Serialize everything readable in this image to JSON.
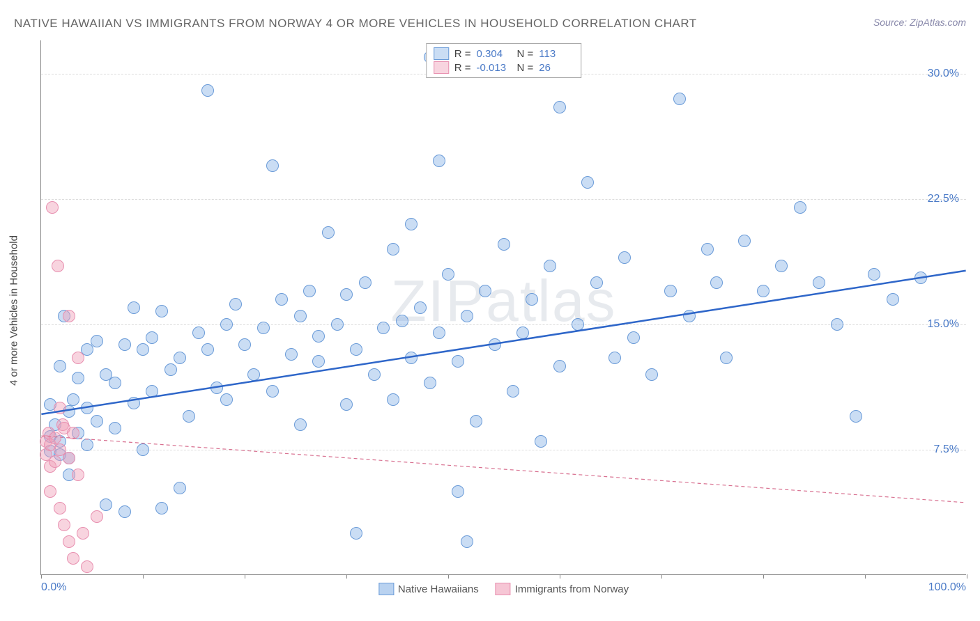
{
  "title": "NATIVE HAWAIIAN VS IMMIGRANTS FROM NORWAY 4 OR MORE VEHICLES IN HOUSEHOLD CORRELATION CHART",
  "source": "Source: ZipAtlas.com",
  "watermark": "ZIPatlas",
  "y_axis_title": "4 or more Vehicles in Household",
  "chart": {
    "type": "scatter",
    "xlim": [
      0,
      100
    ],
    "ylim": [
      0,
      32
    ],
    "x_ticks_label_left": "0.0%",
    "x_ticks_label_right": "100.0%",
    "y_ticks": [
      {
        "value": 7.5,
        "label": "7.5%"
      },
      {
        "value": 15.0,
        "label": "15.0%"
      },
      {
        "value": 22.5,
        "label": "22.5%"
      },
      {
        "value": 30.0,
        "label": "30.0%"
      }
    ],
    "x_tick_positions": [
      0,
      11,
      22,
      33,
      44,
      56,
      67,
      78,
      89,
      100
    ],
    "background_color": "#ffffff",
    "grid_color": "#dddddd",
    "point_radius": 9,
    "series": [
      {
        "name": "Native Hawaiians",
        "fill": "rgba(138, 180, 230, 0.45)",
        "stroke": "#6a9bd8",
        "trend_color": "#2e66c9",
        "trend_width": 2.5,
        "trend_dash": "none",
        "R": "0.304",
        "N": "113",
        "trend": {
          "x1": 0,
          "y1": 9.6,
          "x2": 100,
          "y2": 18.2
        },
        "points": [
          [
            1,
            10.2
          ],
          [
            1,
            8.3
          ],
          [
            1,
            7.4
          ],
          [
            1.5,
            9.0
          ],
          [
            2,
            12.5
          ],
          [
            2,
            8.0
          ],
          [
            2,
            7.2
          ],
          [
            2.5,
            15.5
          ],
          [
            3,
            9.8
          ],
          [
            3,
            7.0
          ],
          [
            3,
            6.0
          ],
          [
            3.5,
            10.5
          ],
          [
            4,
            11.8
          ],
          [
            4,
            8.5
          ],
          [
            5,
            13.5
          ],
          [
            5,
            10.0
          ],
          [
            5,
            7.8
          ],
          [
            6,
            14.0
          ],
          [
            6,
            9.2
          ],
          [
            7,
            4.2
          ],
          [
            7,
            12.0
          ],
          [
            8,
            8.8
          ],
          [
            8,
            11.5
          ],
          [
            9,
            3.8
          ],
          [
            9,
            13.8
          ],
          [
            10,
            16.0
          ],
          [
            10,
            10.3
          ],
          [
            11,
            13.5
          ],
          [
            11,
            7.5
          ],
          [
            12,
            14.2
          ],
          [
            12,
            11.0
          ],
          [
            13,
            4.0
          ],
          [
            13,
            15.8
          ],
          [
            14,
            12.3
          ],
          [
            15,
            13.0
          ],
          [
            15,
            5.2
          ],
          [
            16,
            9.5
          ],
          [
            17,
            14.5
          ],
          [
            18,
            13.5
          ],
          [
            18,
            29.0
          ],
          [
            19,
            11.2
          ],
          [
            20,
            15.0
          ],
          [
            20,
            10.5
          ],
          [
            21,
            16.2
          ],
          [
            22,
            13.8
          ],
          [
            23,
            12.0
          ],
          [
            24,
            14.8
          ],
          [
            25,
            24.5
          ],
          [
            25,
            11.0
          ],
          [
            26,
            16.5
          ],
          [
            27,
            13.2
          ],
          [
            28,
            15.5
          ],
          [
            28,
            9.0
          ],
          [
            29,
            17.0
          ],
          [
            30,
            12.8
          ],
          [
            30,
            14.3
          ],
          [
            31,
            20.5
          ],
          [
            32,
            15.0
          ],
          [
            33,
            10.2
          ],
          [
            33,
            16.8
          ],
          [
            34,
            2.5
          ],
          [
            34,
            13.5
          ],
          [
            35,
            17.5
          ],
          [
            36,
            12.0
          ],
          [
            37,
            14.8
          ],
          [
            38,
            19.5
          ],
          [
            38,
            10.5
          ],
          [
            39,
            15.2
          ],
          [
            40,
            21.0
          ],
          [
            40,
            13.0
          ],
          [
            41,
            16.0
          ],
          [
            42,
            31.0
          ],
          [
            42,
            11.5
          ],
          [
            43,
            24.8
          ],
          [
            43,
            14.5
          ],
          [
            44,
            18.0
          ],
          [
            45,
            5.0
          ],
          [
            45,
            12.8
          ],
          [
            46,
            2.0
          ],
          [
            46,
            15.5
          ],
          [
            47,
            9.2
          ],
          [
            48,
            17.0
          ],
          [
            49,
            13.8
          ],
          [
            50,
            19.8
          ],
          [
            51,
            11.0
          ],
          [
            52,
            14.5
          ],
          [
            53,
            16.5
          ],
          [
            54,
            8.0
          ],
          [
            55,
            18.5
          ],
          [
            56,
            28.0
          ],
          [
            56,
            12.5
          ],
          [
            58,
            15.0
          ],
          [
            59,
            23.5
          ],
          [
            60,
            17.5
          ],
          [
            62,
            13.0
          ],
          [
            63,
            19.0
          ],
          [
            64,
            14.2
          ],
          [
            66,
            12.0
          ],
          [
            68,
            17.0
          ],
          [
            69,
            28.5
          ],
          [
            70,
            15.5
          ],
          [
            72,
            19.5
          ],
          [
            73,
            17.5
          ],
          [
            74,
            13.0
          ],
          [
            76,
            20.0
          ],
          [
            78,
            17.0
          ],
          [
            80,
            18.5
          ],
          [
            82,
            22.0
          ],
          [
            84,
            17.5
          ],
          [
            86,
            15.0
          ],
          [
            88,
            9.5
          ],
          [
            90,
            18.0
          ],
          [
            92,
            16.5
          ],
          [
            95,
            17.8
          ]
        ]
      },
      {
        "name": "Immigrants from Norway",
        "fill": "rgba(240, 160, 185, 0.45)",
        "stroke": "#e890b0",
        "trend_color": "#d87090",
        "trend_width": 1.2,
        "trend_dash": "5,4",
        "R": "-0.013",
        "N": "26",
        "trend": {
          "x1": 0,
          "y1": 8.3,
          "x2": 100,
          "y2": 4.3
        },
        "points": [
          [
            0.5,
            8.0
          ],
          [
            0.5,
            7.2
          ],
          [
            0.8,
            8.5
          ],
          [
            1,
            7.8
          ],
          [
            1,
            6.5
          ],
          [
            1,
            5.0
          ],
          [
            1.2,
            22.0
          ],
          [
            1.5,
            8.2
          ],
          [
            1.5,
            6.8
          ],
          [
            1.8,
            18.5
          ],
          [
            2,
            10.0
          ],
          [
            2,
            7.5
          ],
          [
            2,
            4.0
          ],
          [
            2.3,
            9.0
          ],
          [
            2.5,
            8.8
          ],
          [
            2.5,
            3.0
          ],
          [
            3,
            15.5
          ],
          [
            3,
            7.0
          ],
          [
            3,
            2.0
          ],
          [
            3.5,
            8.5
          ],
          [
            3.5,
            1.0
          ],
          [
            4,
            13.0
          ],
          [
            4,
            6.0
          ],
          [
            4.5,
            2.5
          ],
          [
            5,
            0.5
          ],
          [
            6,
            3.5
          ]
        ]
      }
    ]
  },
  "legend_bottom": [
    {
      "label": "Native Hawaiians",
      "fill": "rgba(138, 180, 230, 0.6)",
      "stroke": "#6a9bd8"
    },
    {
      "label": "Immigrants from Norway",
      "fill": "rgba(240, 160, 185, 0.6)",
      "stroke": "#e890b0"
    }
  ]
}
